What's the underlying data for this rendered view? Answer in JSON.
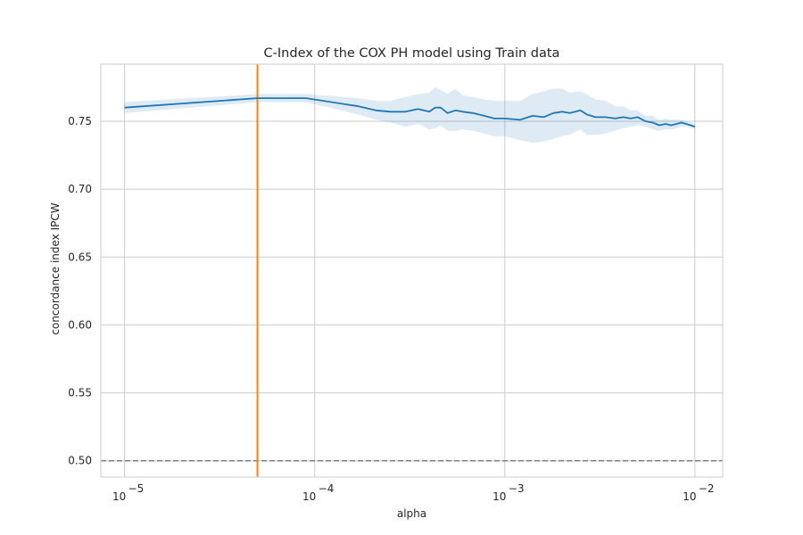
{
  "chart_data": {
    "type": "line",
    "title": "C-Index of the COX PH model using Train data",
    "xlabel": "alpha",
    "ylabel": "concordance index IPCW",
    "xscale": "log",
    "xlim": [
      7.5e-06,
      0.014
    ],
    "ylim": [
      0.488,
      0.792
    ],
    "grid": true,
    "x_ticks": [
      {
        "value": 1e-05,
        "base": "10",
        "exp": "−5"
      },
      {
        "value": 0.0001,
        "base": "10",
        "exp": "−4"
      },
      {
        "value": 0.001,
        "base": "10",
        "exp": "−3"
      },
      {
        "value": 0.01,
        "base": "10",
        "exp": "−2"
      }
    ],
    "y_ticks": [
      "0.50",
      "0.55",
      "0.60",
      "0.65",
      "0.70",
      "0.75"
    ],
    "series": [
      {
        "kind": "mean",
        "color": "#1f77b4",
        "x": [
          1e-05,
          5e-05,
          9e-05,
          0.00017,
          0.00021,
          0.00025,
          0.0003,
          0.00035,
          0.0004,
          0.00043,
          0.00046,
          0.0005,
          0.00055,
          0.0006,
          0.00068,
          0.00078,
          0.00088,
          0.001,
          0.0012,
          0.0014,
          0.0016,
          0.0018,
          0.002,
          0.0022,
          0.0025,
          0.0027,
          0.003,
          0.0034,
          0.0038,
          0.0042,
          0.0046,
          0.005,
          0.0055,
          0.006,
          0.0065,
          0.007,
          0.0075,
          0.008,
          0.0085,
          0.009,
          0.0095,
          0.01
        ],
        "y": [
          0.76,
          0.767,
          0.767,
          0.761,
          0.758,
          0.757,
          0.757,
          0.759,
          0.757,
          0.76,
          0.76,
          0.756,
          0.758,
          0.757,
          0.756,
          0.754,
          0.752,
          0.752,
          0.751,
          0.754,
          0.753,
          0.756,
          0.757,
          0.756,
          0.758,
          0.755,
          0.753,
          0.753,
          0.752,
          0.753,
          0.752,
          0.753,
          0.75,
          0.749,
          0.747,
          0.748,
          0.747,
          0.748,
          0.749,
          0.748,
          0.747,
          0.746
        ]
      },
      {
        "kind": "band",
        "color": "#1f77b4",
        "x": [
          1e-05,
          5e-05,
          9e-05,
          0.00017,
          0.00021,
          0.00025,
          0.0003,
          0.00035,
          0.0004,
          0.00043,
          0.00046,
          0.0005,
          0.00055,
          0.0006,
          0.00068,
          0.00078,
          0.00088,
          0.001,
          0.0012,
          0.0014,
          0.0016,
          0.0018,
          0.002,
          0.0022,
          0.0025,
          0.0027,
          0.003,
          0.0034,
          0.0038,
          0.0042,
          0.0046,
          0.005,
          0.0055,
          0.006,
          0.0065,
          0.007,
          0.0075,
          0.008,
          0.0085,
          0.009,
          0.0095,
          0.01
        ],
        "upper": [
          0.764,
          0.77,
          0.77,
          0.767,
          0.765,
          0.765,
          0.768,
          0.77,
          0.771,
          0.775,
          0.773,
          0.77,
          0.774,
          0.769,
          0.768,
          0.766,
          0.765,
          0.765,
          0.765,
          0.77,
          0.772,
          0.774,
          0.774,
          0.771,
          0.772,
          0.77,
          0.766,
          0.765,
          0.761,
          0.761,
          0.758,
          0.758,
          0.754,
          0.754,
          0.751,
          0.752,
          0.751,
          0.751,
          0.751,
          0.75,
          0.749,
          0.748
        ],
        "lower": [
          0.756,
          0.764,
          0.764,
          0.755,
          0.751,
          0.749,
          0.746,
          0.748,
          0.744,
          0.745,
          0.747,
          0.743,
          0.743,
          0.744,
          0.743,
          0.741,
          0.739,
          0.739,
          0.736,
          0.734,
          0.735,
          0.737,
          0.739,
          0.74,
          0.744,
          0.74,
          0.74,
          0.741,
          0.743,
          0.745,
          0.746,
          0.747,
          0.746,
          0.744,
          0.743,
          0.744,
          0.744,
          0.745,
          0.746,
          0.746,
          0.745,
          0.744
        ]
      }
    ],
    "vlines": [
      {
        "x": 5e-05,
        "color": "#ff7f0e"
      }
    ],
    "hlines": [
      {
        "y": 0.5,
        "color": "#808080",
        "style": "dashed"
      }
    ]
  }
}
